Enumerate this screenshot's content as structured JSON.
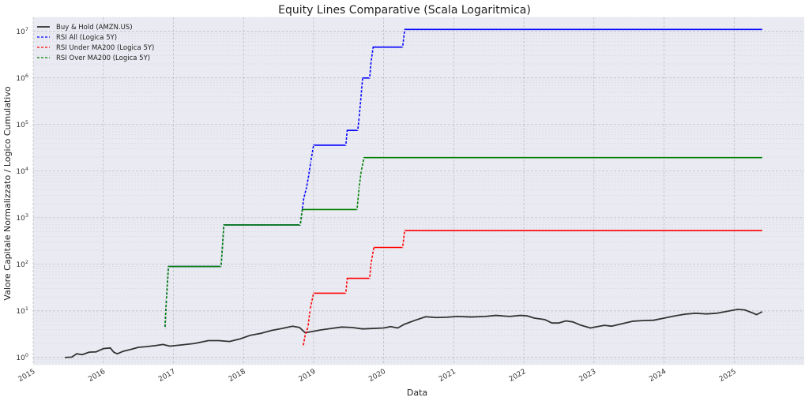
{
  "chart_data": {
    "type": "line",
    "title": "Equity Lines Comparative (Scala Logaritmica)",
    "xlabel": "Data",
    "ylabel": "Valore Capitale Normalizzato / Logico Cumulativo",
    "y_scale": "log",
    "ylim": [
      0.7,
      20000000
    ],
    "xlim": [
      2015.0,
      2026.0
    ],
    "grid": true,
    "legend_position": "top-left",
    "background_color": "#eaeaf2",
    "x_ticks": [
      {
        "value": 2015,
        "label": "2015"
      },
      {
        "value": 2016,
        "label": "2016"
      },
      {
        "value": 2017,
        "label": "2017"
      },
      {
        "value": 2018,
        "label": "2018"
      },
      {
        "value": 2019,
        "label": "2019"
      },
      {
        "value": 2020,
        "label": "2020"
      },
      {
        "value": 2021,
        "label": "2021"
      },
      {
        "value": 2022,
        "label": "2022"
      },
      {
        "value": 2023,
        "label": "2023"
      },
      {
        "value": 2024,
        "label": "2024"
      },
      {
        "value": 2025,
        "label": "2025"
      }
    ],
    "y_ticks": [
      {
        "value": 1,
        "base": "10",
        "exp": "0"
      },
      {
        "value": 10,
        "base": "10",
        "exp": "1"
      },
      {
        "value": 100,
        "base": "10",
        "exp": "2"
      },
      {
        "value": 1000,
        "base": "10",
        "exp": "3"
      },
      {
        "value": 10000,
        "base": "10",
        "exp": "4"
      },
      {
        "value": 100000,
        "base": "10",
        "exp": "5"
      },
      {
        "value": 1000000,
        "base": "10",
        "exp": "6"
      },
      {
        "value": 10000000,
        "base": "10",
        "exp": "7"
      }
    ],
    "series": [
      {
        "name": "Buy & Hold (AMZN.US)",
        "color": "#333333",
        "style": "solid",
        "step": false,
        "points": [
          [
            2015.45,
            1.0
          ],
          [
            2015.55,
            1.02
          ],
          [
            2015.62,
            1.2
          ],
          [
            2015.7,
            1.15
          ],
          [
            2015.8,
            1.3
          ],
          [
            2015.9,
            1.32
          ],
          [
            2016.0,
            1.55
          ],
          [
            2016.1,
            1.6
          ],
          [
            2016.15,
            1.3
          ],
          [
            2016.2,
            1.2
          ],
          [
            2016.28,
            1.35
          ],
          [
            2016.4,
            1.5
          ],
          [
            2016.5,
            1.65
          ],
          [
            2016.6,
            1.7
          ],
          [
            2016.75,
            1.8
          ],
          [
            2016.85,
            1.9
          ],
          [
            2016.95,
            1.75
          ],
          [
            2017.1,
            1.85
          ],
          [
            2017.3,
            2.0
          ],
          [
            2017.5,
            2.3
          ],
          [
            2017.65,
            2.3
          ],
          [
            2017.8,
            2.2
          ],
          [
            2017.95,
            2.5
          ],
          [
            2018.1,
            3.0
          ],
          [
            2018.25,
            3.3
          ],
          [
            2018.4,
            3.8
          ],
          [
            2018.55,
            4.2
          ],
          [
            2018.7,
            4.7
          ],
          [
            2018.8,
            4.4
          ],
          [
            2018.88,
            3.4
          ],
          [
            2018.98,
            3.6
          ],
          [
            2019.1,
            3.9
          ],
          [
            2019.25,
            4.2
          ],
          [
            2019.4,
            4.5
          ],
          [
            2019.55,
            4.4
          ],
          [
            2019.7,
            4.1
          ],
          [
            2019.85,
            4.2
          ],
          [
            2020.0,
            4.3
          ],
          [
            2020.1,
            4.6
          ],
          [
            2020.2,
            4.3
          ],
          [
            2020.3,
            5.2
          ],
          [
            2020.45,
            6.3
          ],
          [
            2020.6,
            7.5
          ],
          [
            2020.75,
            7.2
          ],
          [
            2020.9,
            7.3
          ],
          [
            2021.05,
            7.6
          ],
          [
            2021.25,
            7.4
          ],
          [
            2021.45,
            7.6
          ],
          [
            2021.6,
            8.0
          ],
          [
            2021.8,
            7.6
          ],
          [
            2021.95,
            8.0
          ],
          [
            2022.05,
            7.8
          ],
          [
            2022.15,
            7.0
          ],
          [
            2022.3,
            6.5
          ],
          [
            2022.4,
            5.5
          ],
          [
            2022.5,
            5.5
          ],
          [
            2022.6,
            6.1
          ],
          [
            2022.7,
            5.8
          ],
          [
            2022.8,
            5.0
          ],
          [
            2022.95,
            4.3
          ],
          [
            2023.05,
            4.6
          ],
          [
            2023.15,
            4.9
          ],
          [
            2023.25,
            4.7
          ],
          [
            2023.4,
            5.3
          ],
          [
            2023.55,
            6.0
          ],
          [
            2023.7,
            6.2
          ],
          [
            2023.85,
            6.3
          ],
          [
            2024.0,
            7.0
          ],
          [
            2024.15,
            7.8
          ],
          [
            2024.3,
            8.5
          ],
          [
            2024.45,
            8.9
          ],
          [
            2024.6,
            8.6
          ],
          [
            2024.75,
            8.9
          ],
          [
            2024.9,
            9.8
          ],
          [
            2025.05,
            10.8
          ],
          [
            2025.15,
            10.5
          ],
          [
            2025.25,
            9.2
          ],
          [
            2025.32,
            8.3
          ],
          [
            2025.4,
            9.6
          ]
        ]
      },
      {
        "name": "RSI All (Logica 5Y)",
        "color": "#0000ff",
        "style": "dashed",
        "step": true,
        "points": [
          [
            2016.88,
            4.2
          ],
          [
            2016.9,
            17
          ],
          [
            2016.93,
            90
          ],
          [
            2017.68,
            90
          ],
          [
            2017.7,
            240
          ],
          [
            2017.72,
            700
          ],
          [
            2018.81,
            700
          ],
          [
            2018.83,
            1200
          ],
          [
            2018.86,
            2600
          ],
          [
            2018.9,
            4500
          ],
          [
            2018.93,
            8000
          ],
          [
            2018.96,
            16000
          ],
          [
            2019.0,
            36000
          ],
          [
            2019.46,
            36000
          ],
          [
            2019.48,
            75000
          ],
          [
            2019.63,
            75000
          ],
          [
            2019.65,
            140000
          ],
          [
            2019.7,
            1000000
          ],
          [
            2019.8,
            1000000
          ],
          [
            2019.82,
            2200000
          ],
          [
            2019.85,
            4600000
          ],
          [
            2020.27,
            4600000
          ],
          [
            2020.3,
            11000000
          ],
          [
            2025.4,
            11000000
          ]
        ]
      },
      {
        "name": "RSI Under MA200 (Logica 5Y)",
        "color": "#ff0000",
        "style": "dashed",
        "step": true,
        "points": [
          [
            2018.85,
            1.7
          ],
          [
            2018.88,
            3.0
          ],
          [
            2018.92,
            4.5
          ],
          [
            2018.95,
            10.5
          ],
          [
            2019.0,
            24
          ],
          [
            2019.46,
            24
          ],
          [
            2019.48,
            50
          ],
          [
            2019.8,
            50
          ],
          [
            2019.82,
            105
          ],
          [
            2019.86,
            230
          ],
          [
            2020.27,
            230
          ],
          [
            2020.3,
            530
          ],
          [
            2025.4,
            530
          ]
        ]
      },
      {
        "name": "RSI Over MA200 (Logica 5Y)",
        "color": "#008000",
        "style": "dashed",
        "step": true,
        "points": [
          [
            2016.88,
            4.2
          ],
          [
            2016.9,
            17
          ],
          [
            2016.93,
            90
          ],
          [
            2017.68,
            90
          ],
          [
            2017.7,
            240
          ],
          [
            2017.72,
            700
          ],
          [
            2018.81,
            700
          ],
          [
            2018.84,
            1500
          ],
          [
            2019.62,
            1500
          ],
          [
            2019.65,
            4500
          ],
          [
            2019.68,
            10000
          ],
          [
            2019.72,
            19500
          ],
          [
            2025.4,
            19500
          ]
        ]
      }
    ]
  }
}
